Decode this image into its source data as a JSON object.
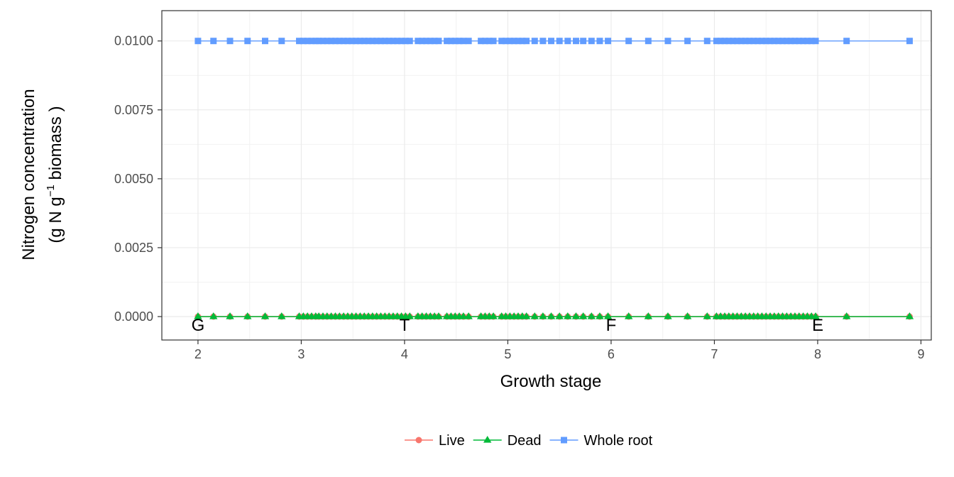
{
  "chart_data": {
    "type": "line",
    "xlabel": "Growth stage",
    "ylabel_line1": "Nitrogen concentration",
    "ylabel_line2": {
      "prefix": "(g N  g",
      "superscript": "−1",
      "suffix": "  biomass )"
    },
    "xlim": [
      1.65,
      9.1
    ],
    "ylim": [
      -0.00085,
      0.0111
    ],
    "x_ticks": [
      2,
      3,
      4,
      5,
      6,
      7,
      8,
      9
    ],
    "x_tick_labels": [
      "2",
      "3",
      "4",
      "5",
      "6",
      "7",
      "8",
      "9"
    ],
    "y_ticks": [
      0,
      0.0025,
      0.005,
      0.0075,
      0.01
    ],
    "y_tick_labels": [
      "0.0000",
      "0.0025",
      "0.0050",
      "0.0075",
      "0.0100"
    ],
    "grid": true,
    "legend_position": "bottom",
    "stage_annotations": [
      {
        "x": 2,
        "label": "G"
      },
      {
        "x": 4,
        "label": "T"
      },
      {
        "x": 6,
        "label": "F"
      },
      {
        "x": 8,
        "label": "E"
      }
    ],
    "x": [
      2.0,
      2.15,
      2.31,
      2.48,
      2.65,
      2.81,
      2.98,
      3.02,
      3.06,
      3.1,
      3.14,
      3.17,
      3.21,
      3.25,
      3.29,
      3.33,
      3.37,
      3.41,
      3.45,
      3.49,
      3.53,
      3.57,
      3.61,
      3.65,
      3.69,
      3.73,
      3.77,
      3.81,
      3.85,
      3.89,
      3.93,
      3.97,
      4.01,
      4.05,
      4.13,
      4.17,
      4.21,
      4.25,
      4.29,
      4.33,
      4.41,
      4.45,
      4.49,
      4.53,
      4.57,
      4.62,
      4.74,
      4.78,
      4.82,
      4.86,
      4.94,
      4.98,
      5.02,
      5.06,
      5.1,
      5.14,
      5.18,
      5.26,
      5.34,
      5.42,
      5.5,
      5.58,
      5.66,
      5.73,
      5.81,
      5.89,
      5.97,
      6.17,
      6.36,
      6.55,
      6.74,
      6.93,
      7.02,
      7.06,
      7.1,
      7.14,
      7.18,
      7.22,
      7.26,
      7.3,
      7.34,
      7.38,
      7.42,
      7.46,
      7.5,
      7.54,
      7.58,
      7.62,
      7.66,
      7.7,
      7.74,
      7.78,
      7.82,
      7.86,
      7.9,
      7.94,
      7.98,
      8.28,
      8.89
    ],
    "series": [
      {
        "name": "Live",
        "color": "#F8766D",
        "marker": "circle",
        "y_constant": 0
      },
      {
        "name": "Dead",
        "color": "#00BA38",
        "marker": "triangle",
        "y_constant": 0
      },
      {
        "name": "Whole root",
        "color": "#619CFF",
        "marker": "square",
        "y_constant": 0.01
      }
    ]
  }
}
